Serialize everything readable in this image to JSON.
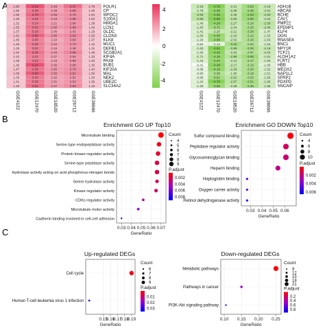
{
  "panels": {
    "a": "A",
    "b": "B",
    "c": "C"
  },
  "heatmap_datasets": [
    "GSE4122",
    "GSE12470",
    "GSE18520",
    "GSE26712",
    "GSE38666"
  ],
  "colorbar": {
    "ticks": [
      "4",
      "2",
      "0",
      "-2",
      "-4"
    ],
    "low_color": "#7fd14a",
    "mid_color": "#ffffff",
    "high_color": "#e8325a"
  },
  "chart_data": [
    {
      "type": "heatmap",
      "panel": "A-up",
      "columns": [
        "GSE4122",
        "GSE12470",
        "GSE18520",
        "GSE26712",
        "GSE38666"
      ],
      "rows": [
        "FOLR1",
        "CP",
        "WFDC2",
        "S100A1",
        "HMGA1",
        "LCN2",
        "GLDC",
        "CLDN3",
        "KLK8",
        "MUC1",
        "DEFB1",
        "SCGB2A1",
        "KIF4A",
        "PAX8",
        "BUB1",
        "KIF20A",
        "MAL",
        "NEK2",
        "UBE2C",
        "SLC34A2"
      ],
      "values": [
        [
          1.8,
          4.14,
          2.46,
          3.47,
          1.79
        ],
        [
          1.5,
          3.29,
          2.28,
          2.8,
          1.45
        ],
        [
          1.66,
          3.7,
          2.59,
          2.75,
          1.54
        ],
        [
          1.49,
          3.32,
          2.43,
          2.85,
          1.52
        ],
        [
          1.32,
          3.14,
          2.21,
          2.64,
          1.38
        ],
        [
          1.55,
          3.41,
          2.6,
          2.89,
          1.46
        ],
        [
          1.37,
          3.18,
          2.06,
          2.42,
          1.29
        ],
        [
          1.62,
          3.8,
          2.65,
          2.93,
          1.55
        ],
        [
          1.4,
          3.05,
          2.1,
          2.6,
          1.37
        ],
        [
          1.45,
          3.25,
          2.34,
          2.7,
          1.42
        ],
        [
          1.28,
          3.02,
          2.15,
          2.48,
          1.31
        ],
        [
          1.52,
          3.45,
          2.4,
          2.95,
          1.48
        ],
        [
          1.42,
          3.11,
          2.27,
          2.54,
          1.33
        ],
        [
          1.36,
          3.22,
          2.18,
          2.66,
          1.4
        ],
        [
          1.3,
          4.21,
          2.35,
          2.58,
          1.35
        ],
        [
          1.47,
          3.38,
          2.5,
          2.76,
          1.44
        ],
        [
          1.58,
          3.94,
          2.55,
          2.91,
          1.5
        ],
        [
          1.33,
          3.2,
          2.22,
          2.51,
          1.3
        ],
        [
          1.41,
          3.28,
          2.31,
          2.62,
          1.36
        ],
        [
          1.49,
          3.51,
          2.47,
          2.83,
          1.43
        ]
      ]
    },
    {
      "type": "heatmap",
      "panel": "A-down",
      "columns": [
        "GSE4122",
        "GSE12470",
        "GSE18520",
        "GSE26712",
        "GSE38666"
      ],
      "rows": [
        "ADH1B",
        "ABCA8",
        "BCHE",
        "CAV1",
        "PMP22",
        "EFEMP1",
        "KLF4",
        "OGN",
        "RNASE4",
        "BNC1",
        "NPY1R",
        "TCF21",
        "ALDH1A2",
        "FLRT2",
        "HBB",
        "MEOX2",
        "NAP1L2",
        "SFRP2",
        "PDXPD",
        "SNCAIP"
      ],
      "values": [
        [
          -2.18,
          -4.75,
          -2.21,
          -3.53,
          -2.18
        ],
        [
          -1.78,
          -4.09,
          -2.36,
          -3.46,
          -2.04
        ],
        [
          -2.66,
          -4.55,
          -2.38,
          -4.03,
          -2.63
        ],
        [
          -2.68,
          -4.85,
          -2.5,
          -3.8,
          -2.03
        ],
        [
          -1.4,
          -4.28,
          -2.27,
          -3.16,
          -2.58
        ],
        [
          -1.6,
          -3.71,
          -2.04,
          -3.2,
          -2.46
        ],
        [
          -1.41,
          -2.2,
          -2.11,
          -3.28,
          -1.47
        ],
        [
          -1.6,
          -4.06,
          -2.16,
          -3.12,
          -1.53
        ],
        [
          -1.2,
          -3.89,
          -2.02,
          -3.15,
          -1.63
        ],
        [
          -0.84,
          -1.14,
          -3.32,
          -2.84,
          -1.53
        ],
        [
          -1.63,
          -4.81,
          -2.88,
          -3.25,
          -2.18
        ],
        [
          -1.3,
          -4.43,
          -2.24,
          -2.97,
          -2.04
        ],
        [
          -1.71,
          -4.16,
          -2.88,
          -3.65,
          -1.81
        ],
        [
          -1.44,
          -4.04,
          -2.14,
          -3.17,
          -1.63
        ],
        [
          -0.41,
          -4.48,
          -2.17,
          -3.13,
          -1.09
        ],
        [
          -0.89,
          -4.18,
          -2.43,
          -3.2,
          -1.52
        ],
        [
          -0.9,
          -3.09,
          -1.9,
          -3.19,
          -1.51
        ],
        [
          -0.98,
          -3.52,
          -2.52,
          -3.03,
          -1.56
        ],
        [
          -1.24,
          -4.78,
          -2.57,
          -3.51,
          -1.9
        ],
        [
          -1.3,
          -3.88,
          -2.28,
          -3.38,
          -1.96
        ]
      ]
    },
    {
      "type": "scatter",
      "panel": "B-up",
      "title": "Enrichment GO UP Top10",
      "xlabel": "GeneRatio",
      "xlim": [
        0.025,
        0.075
      ],
      "xticks": [
        "0.03",
        "0.04",
        "0.05",
        "0.06",
        "0.07"
      ],
      "terms": [
        "Microtubule binding",
        "Serine-type endopeptidase activity",
        "Protein kinase regulator activity",
        "Serine-type peptidase activity",
        "Hydrolase activity acting on acid phosphorus-nitrogen bonds",
        "Serine hydrolase activity",
        "Kinase regulator activity",
        "CDKs regulator activity",
        "Microtubule motor activity",
        "Cadherin binding involved in cell-cell adhesion"
      ],
      "x": [
        0.07,
        0.068,
        0.067,
        0.066,
        0.066,
        0.066,
        0.065,
        0.052,
        0.047,
        0.03
      ],
      "count": [
        8,
        7,
        7,
        7,
        7,
        6,
        6,
        5,
        5,
        4
      ],
      "padjust": [
        0.0005,
        0.001,
        0.0015,
        0.002,
        0.0022,
        0.0025,
        0.0028,
        0.0035,
        0.005,
        0.0085
      ],
      "size_legend": {
        "title": "Count",
        "values": [
          4,
          5,
          6,
          7,
          8,
          9
        ]
      },
      "color_legend": {
        "title": "P.adjust",
        "ticks": [
          0.002,
          0.004,
          0.006,
          0.008
        ],
        "tick_labels": [
          "0.002",
          "0.004",
          "0.006",
          "0.008"
        ],
        "range": [
          0.0005,
          0.009
        ]
      }
    },
    {
      "type": "scatter",
      "panel": "B-down",
      "title": "Enrichment GO DOWN Top10",
      "xlabel": "GeneRatio",
      "xlim": [
        0.022,
        0.07
      ],
      "xticks": [
        "0.03",
        "0.04",
        "0.05",
        "0.06"
      ],
      "terms": [
        "Sulfur compound binding",
        "Peptidase regulator activity",
        "Glycosaminoglycan binding",
        "Heparin binding",
        "Haptoglobin binding",
        "Oxygen carrier activity",
        "Retinol dehydrogenase activity"
      ],
      "x": [
        0.065,
        0.061,
        0.061,
        0.054,
        0.027,
        0.027,
        0.027
      ],
      "count": [
        10,
        9,
        9,
        8,
        4,
        4,
        4
      ],
      "padjust": [
        0.0002,
        0.0015,
        0.0018,
        0.0022,
        0.0045,
        0.005,
        0.0055
      ],
      "size_legend": {
        "title": "Count",
        "values": [
          4,
          6,
          8,
          10
        ]
      },
      "color_legend": {
        "title": "P.adjust",
        "ticks": [
          0.002,
          0.004,
          0.006
        ],
        "tick_labels": [
          "0.002",
          "0.004",
          "0.006"
        ],
        "range": [
          0.0,
          0.0065
        ]
      }
    },
    {
      "type": "scatter",
      "panel": "C-up",
      "title": "Up-regulated DEGs",
      "xlabel": "GeneRatio",
      "xlim": [
        0.125,
        0.195
      ],
      "xticks": [
        "0.15",
        "0.16",
        "0.17",
        "0.18",
        "0.19"
      ],
      "terms": [
        "Cell cycle",
        "Human T-cell leukemia virus 1 infection"
      ],
      "x": [
        0.19,
        0.13
      ],
      "count": [
        9,
        6
      ],
      "padjust": [
        0.002,
        0.03
      ],
      "size_legend": {
        "title": "Count",
        "values": [
          6,
          7,
          8,
          9
        ]
      },
      "color_legend": {
        "title": "P.adjust",
        "ticks": [
          0.01,
          0.02,
          0.03
        ],
        "tick_labels": [
          "0.01",
          "0.02",
          "0.03"
        ],
        "range": [
          0.0,
          0.035
        ]
      }
    },
    {
      "type": "scatter",
      "panel": "C-down",
      "title": "Down-regulated DEGs",
      "xlabel": "GeneRatio",
      "xlim": [
        0.09,
        0.265
      ],
      "xticks": [
        "0.10",
        "0.15",
        "0.20",
        "0.25"
      ],
      "terms": [
        "Metabolic pathways",
        "Pathways in cancer",
        "PI3K-Akt signaling pathway"
      ],
      "x": [
        0.25,
        0.15,
        0.105
      ],
      "count": [
        21,
        12,
        9
      ],
      "padjust": [
        0.02,
        0.5,
        0.9
      ],
      "size_legend": {
        "title": "Count",
        "values": [
          9,
          12,
          15,
          18,
          21
        ]
      },
      "color_legend": {
        "title": "P.adjust",
        "ticks": [
          0.2,
          0.4,
          0.6,
          0.8
        ],
        "tick_labels": [
          "0.2",
          "0.4",
          "0.6",
          "0.8"
        ],
        "range": [
          0.0,
          0.95
        ]
      }
    }
  ]
}
